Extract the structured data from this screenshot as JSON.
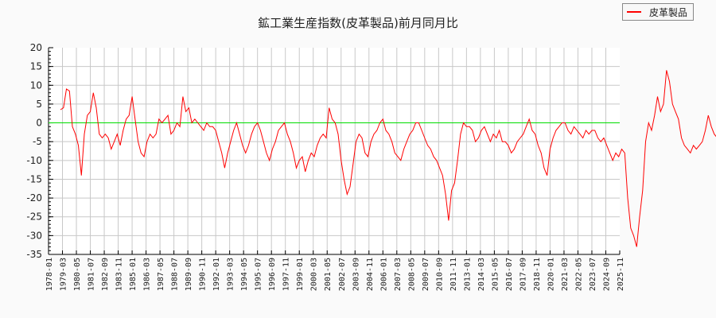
{
  "title": "鉱工業生産指数(皮革製品)前月同月比",
  "legend": {
    "label": "皮革製品",
    "color": "#ff0000"
  },
  "chart_data": {
    "type": "line",
    "title": "鉱工業生産指数(皮革製品)前月同月比",
    "xlabel": "",
    "ylabel": "",
    "ylim": [
      -35,
      20
    ],
    "yticks": [
      20,
      15,
      10,
      5,
      0,
      -5,
      -10,
      -15,
      -20,
      -25,
      -30,
      -35
    ],
    "xlim": [
      "1978-01",
      "2025-11"
    ],
    "xticks": [
      "1978-01",
      "1979-03",
      "1980-05",
      "1981-07",
      "1982-09",
      "1983-11",
      "1985-01",
      "1986-03",
      "1987-05",
      "1988-07",
      "1989-09",
      "1990-11",
      "1992-01",
      "1993-03",
      "1994-05",
      "1995-07",
      "1996-09",
      "1997-11",
      "1999-01",
      "2000-03",
      "2001-05",
      "2002-07",
      "2003-09",
      "2004-11",
      "2006-01",
      "2007-03",
      "2008-05",
      "2009-07",
      "2010-09",
      "2011-11",
      "2013-01",
      "2014-03",
      "2015-05",
      "2016-07",
      "2017-09",
      "2018-11",
      "2020-01",
      "2021-03",
      "2022-05",
      "2023-07",
      "2024-09",
      "2025-11"
    ],
    "grid": true,
    "legend_position": "top-right",
    "reference_line": {
      "y": 0,
      "color": "#00dd00"
    },
    "series": [
      {
        "name": "皮革製品",
        "color": "#ff0000",
        "start": "1979-01",
        "step_months": 3,
        "values": [
          3.5,
          4,
          9,
          8.5,
          -1,
          -3,
          -6,
          -14,
          -3,
          2,
          3,
          8,
          4,
          -3,
          -4,
          -3,
          -4,
          -7,
          -5,
          -3,
          -6,
          -2,
          1,
          2,
          7,
          1,
          -5,
          -8,
          -9,
          -5,
          -3,
          -4,
          -3,
          1,
          0,
          1,
          2,
          -3,
          -2,
          0,
          -1,
          7,
          3,
          4,
          0,
          1,
          0,
          -1,
          -2,
          0,
          -1,
          -1,
          -2,
          -5,
          -8,
          -12,
          -8,
          -5,
          -2,
          0,
          -3,
          -6,
          -8,
          -6,
          -3,
          -1,
          0,
          -2,
          -5,
          -8,
          -10,
          -7,
          -5,
          -2,
          -1,
          0,
          -3,
          -5,
          -8,
          -12,
          -10,
          -9,
          -13,
          -10,
          -8,
          -9,
          -6,
          -4,
          -3,
          -4,
          4,
          1,
          0,
          -3,
          -10,
          -15,
          -19,
          -17,
          -11,
          -5,
          -3,
          -4,
          -8,
          -9,
          -5,
          -3,
          -2,
          0,
          1,
          -2,
          -3,
          -5,
          -8,
          -9,
          -10,
          -7,
          -5,
          -3,
          -2,
          0,
          0,
          -2,
          -4,
          -6,
          -7,
          -9,
          -10,
          -12,
          -14,
          -19,
          -26,
          -18,
          -16,
          -10,
          -3,
          0,
          -1,
          -1,
          -2,
          -5,
          -4,
          -2,
          -1,
          -3,
          -5,
          -3,
          -4,
          -2,
          -5,
          -5,
          -6,
          -8,
          -7,
          -5,
          -4,
          -3,
          -1,
          1,
          -2,
          -3,
          -6,
          -8,
          -12,
          -14,
          -7,
          -4,
          -2,
          -1,
          0,
          0,
          -2,
          -3,
          -1,
          -2,
          -3,
          -4,
          -2,
          -3,
          -2,
          -2,
          -4,
          -5,
          -4,
          -6,
          -8,
          -10,
          -8,
          -9,
          -7,
          -8,
          -20,
          -28,
          -30,
          -33,
          -25,
          -18,
          -5,
          0,
          -2,
          2,
          7,
          3,
          5,
          14,
          11,
          5,
          3,
          1,
          -4,
          -6,
          -7,
          -8,
          -6,
          -7,
          -6,
          -5,
          -2,
          2,
          -1,
          -3,
          -4,
          -5
        ]
      }
    ]
  }
}
